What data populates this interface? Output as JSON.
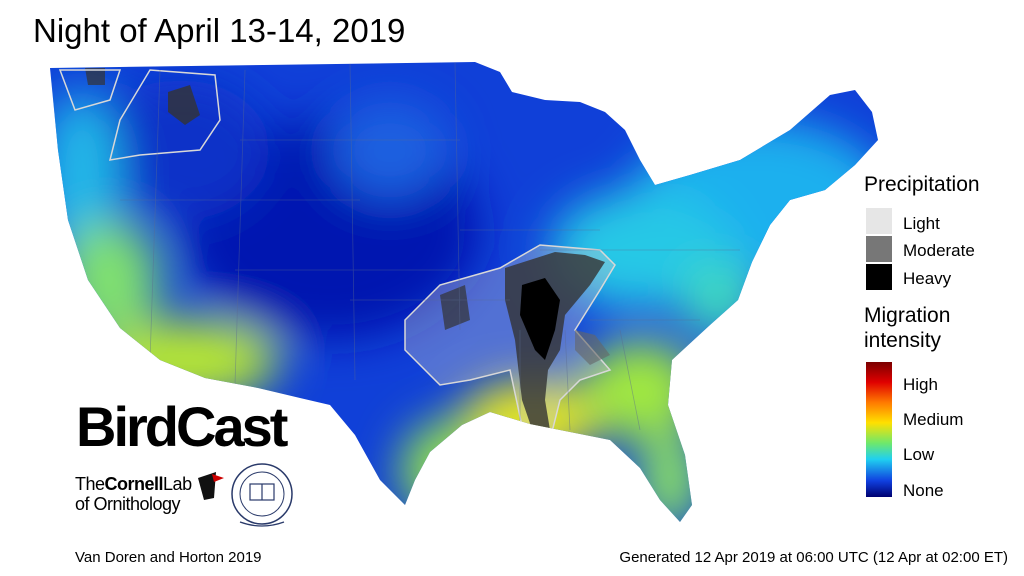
{
  "title": "Night of April 13-14, 2019",
  "legend": {
    "precipitation": {
      "title": "Precipitation",
      "items": [
        "Light",
        "Moderate",
        "Heavy"
      ]
    },
    "migration": {
      "title": "Migration intensity",
      "levels": [
        "High",
        "Medium",
        "Low",
        "None"
      ]
    }
  },
  "logos": {
    "birdcast": "BirdCast",
    "cornell": {
      "the": "The",
      "cornell": "Cornell",
      "lab": "Lab",
      "of": "of Ornithology"
    }
  },
  "footer": {
    "credit": "Van Doren and Horton 2019",
    "generated": "Generated 12 Apr 2019 at 06:00 UTC (12 Apr at 02:00 ET)"
  }
}
